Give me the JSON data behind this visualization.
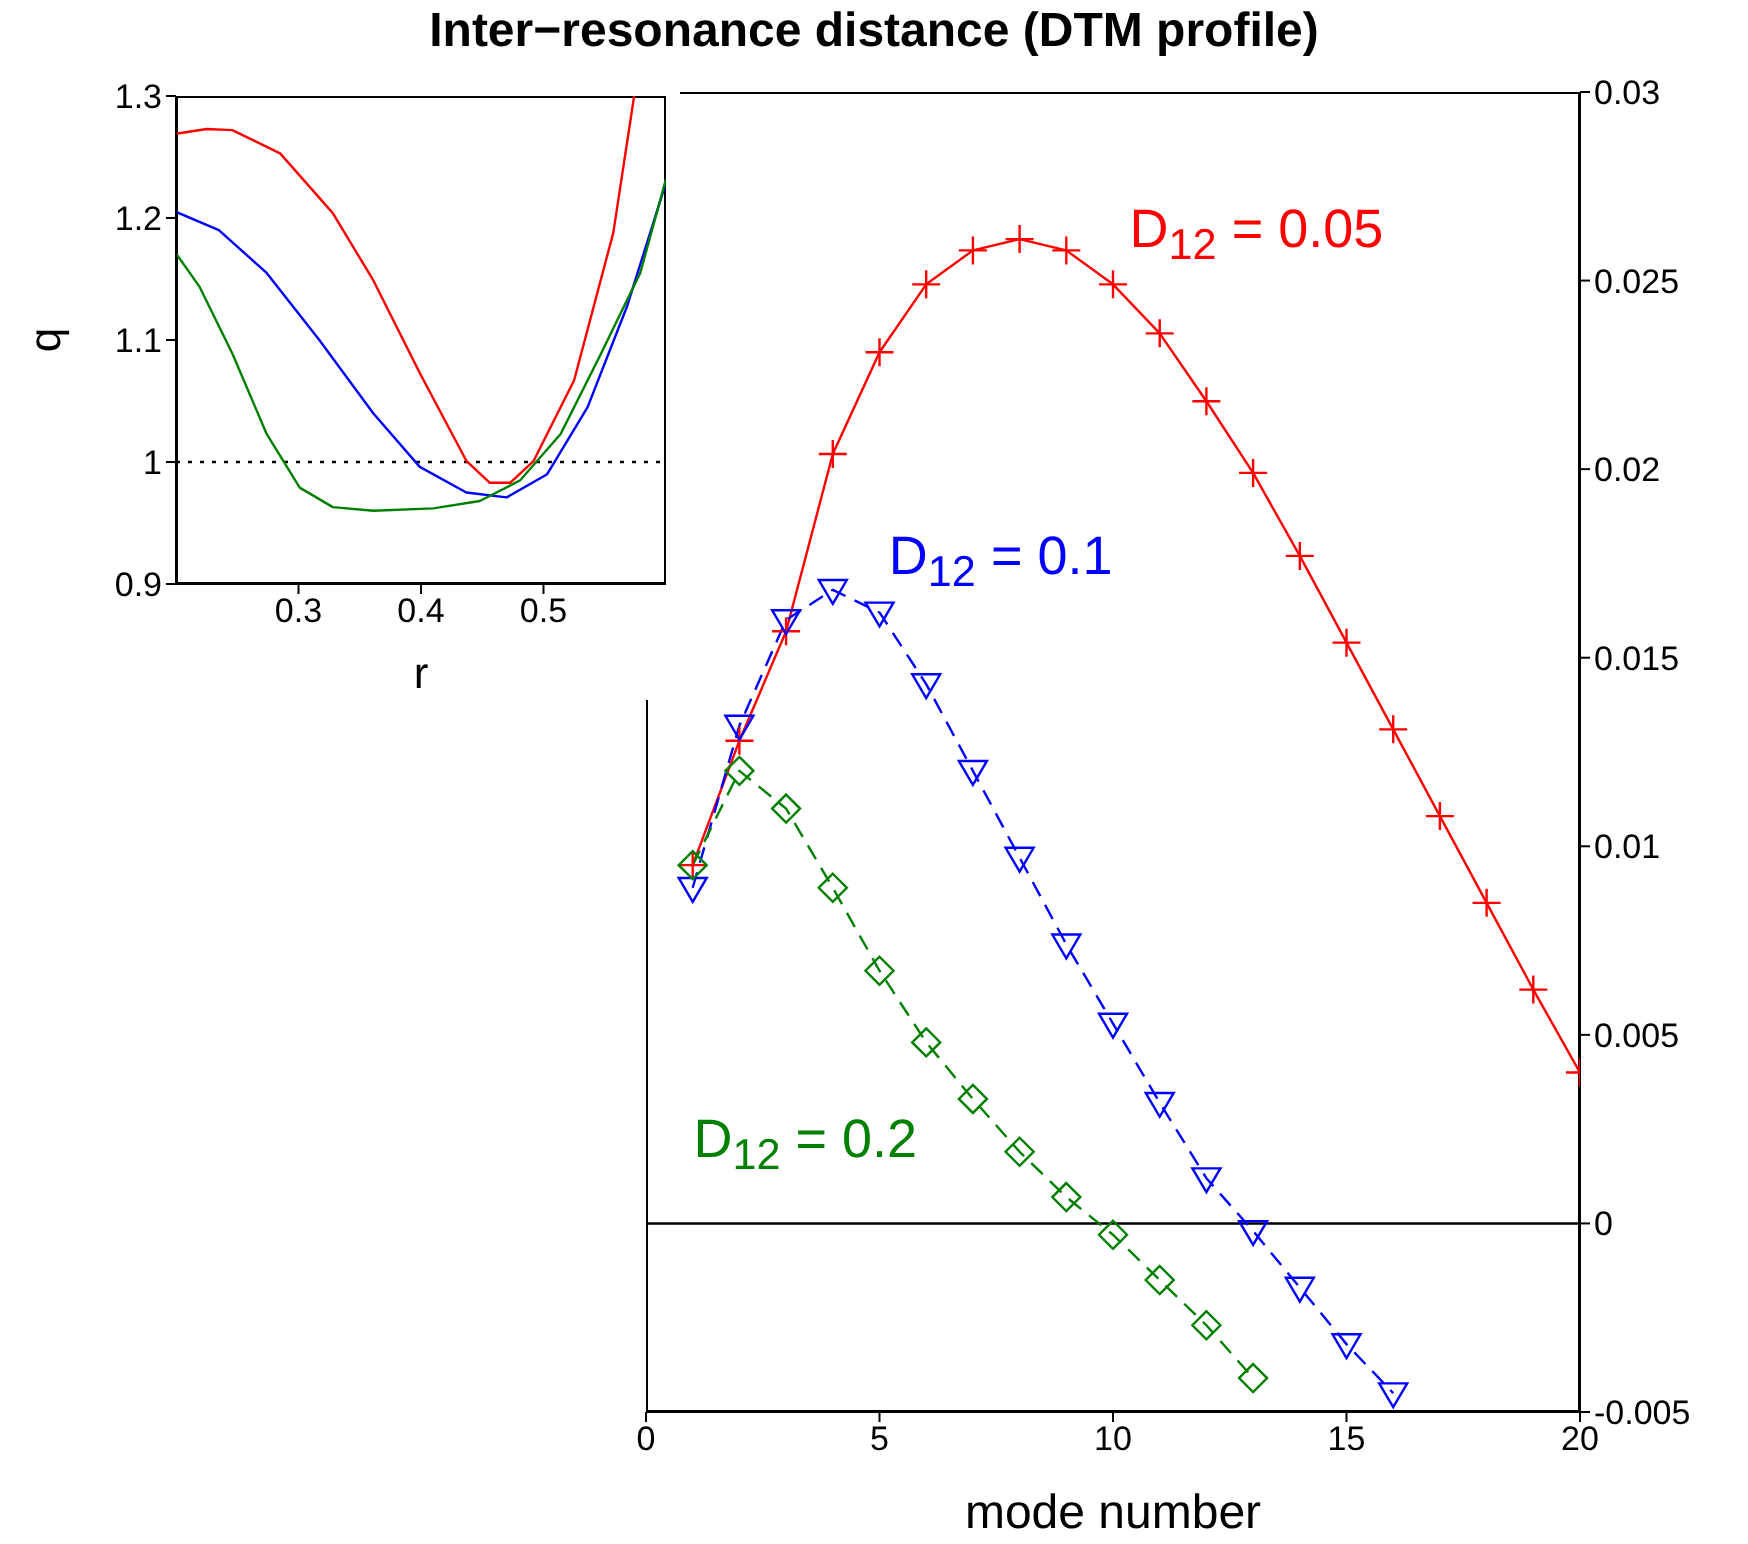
{
  "chart_data": [
    {
      "type": "line",
      "title": "Inter−resonance distance (DTM profile)",
      "xlabel": "mode number",
      "xlim": [
        0,
        20
      ],
      "xticks": [
        0,
        5,
        10,
        15,
        20
      ],
      "ylim": [
        -0.005,
        0.03
      ],
      "yticks": [
        -0.005,
        0,
        0.005,
        0.01,
        0.015,
        0.02,
        0.025,
        0.03
      ],
      "ref_lines": [
        {
          "axis": "y",
          "value": 0,
          "color": "#000000",
          "line_style": "solid"
        }
      ],
      "series": [
        {
          "name": "D$_{12}$ = 0.05",
          "color": "#ff0000",
          "marker": "cross",
          "line_style": "solid",
          "x": [
            1,
            2,
            3,
            4,
            5,
            6,
            7,
            8,
            9,
            10,
            11,
            12,
            13,
            14,
            15,
            16,
            17,
            18,
            19,
            20
          ],
          "values": [
            0.0095,
            0.0128,
            0.0157,
            0.0204,
            0.0231,
            0.0249,
            0.0258,
            0.0261,
            0.0258,
            0.0249,
            0.0236,
            0.0218,
            0.0199,
            0.0177,
            0.0154,
            0.0131,
            0.0108,
            0.0085,
            0.0062,
            0.004
          ]
        },
        {
          "name": "D$_{12}$ = 0.1",
          "color": "#0000ff",
          "marker": "triangle",
          "line_style": "dashed",
          "x": [
            1,
            2,
            3,
            4,
            5,
            6,
            7,
            8,
            9,
            10,
            11,
            12,
            13,
            14,
            15,
            16
          ],
          "values": [
            0.0089,
            0.0132,
            0.016,
            0.0168,
            0.0162,
            0.0143,
            0.012,
            0.0097,
            0.0074,
            0.0053,
            0.0032,
            0.0012,
            -0.0002,
            -0.0017,
            -0.0032,
            -0.0045
          ]
        },
        {
          "name": "D$_{12}$ = 0.2",
          "color": "#008000",
          "marker": "diamond",
          "line_style": "dashed",
          "x": [
            1,
            2,
            3,
            4,
            5,
            6,
            7,
            8,
            9,
            10,
            11,
            12,
            13
          ],
          "values": [
            0.0095,
            0.012,
            0.011,
            0.0089,
            0.0067,
            0.0048,
            0.0033,
            0.0019,
            0.0007,
            -0.0003,
            -0.0015,
            -0.0027,
            -0.0041
          ]
        }
      ]
    },
    {
      "type": "line",
      "xlabel": "r",
      "ylabel": "q",
      "xlim": [
        0.2,
        0.6
      ],
      "xticks": [
        0.3,
        0.4,
        0.5
      ],
      "ylim": [
        0.9,
        1.3
      ],
      "yticks": [
        0.9,
        1,
        1.1,
        1.2,
        1.3
      ],
      "marker": "none",
      "line_style": "solid",
      "ref_lines": [
        {
          "axis": "y",
          "value": 1,
          "color": "#000000",
          "line_style": "dotted"
        }
      ],
      "series": [
        {
          "color": "#ff0000",
          "x": [
            0.2,
            0.225,
            0.246,
            0.285,
            0.328,
            0.361,
            0.399,
            0.437,
            0.456,
            0.473,
            0.492,
            0.525,
            0.557,
            0.574
          ],
          "values": [
            1.269,
            1.273,
            1.272,
            1.253,
            1.204,
            1.149,
            1.073,
            1.001,
            0.983,
            0.983,
            1.001,
            1.067,
            1.188,
            1.3
          ]
        },
        {
          "color": "#0000ff",
          "x": [
            0.2,
            0.235,
            0.274,
            0.317,
            0.361,
            0.399,
            0.437,
            0.47,
            0.503,
            0.536,
            0.568,
            0.6
          ],
          "values": [
            1.205,
            1.19,
            1.155,
            1.1,
            1.04,
            0.996,
            0.975,
            0.971,
            0.99,
            1.045,
            1.127,
            1.229
          ]
        },
        {
          "color": "#008000",
          "x": [
            0.2,
            0.219,
            0.246,
            0.274,
            0.301,
            0.328,
            0.361,
            0.41,
            0.448,
            0.481,
            0.514,
            0.547,
            0.579,
            0.6
          ],
          "values": [
            1.171,
            1.144,
            1.089,
            1.023,
            0.979,
            0.963,
            0.96,
            0.962,
            0.968,
            0.985,
            1.023,
            1.089,
            1.155,
            1.232
          ]
        }
      ]
    }
  ]
}
